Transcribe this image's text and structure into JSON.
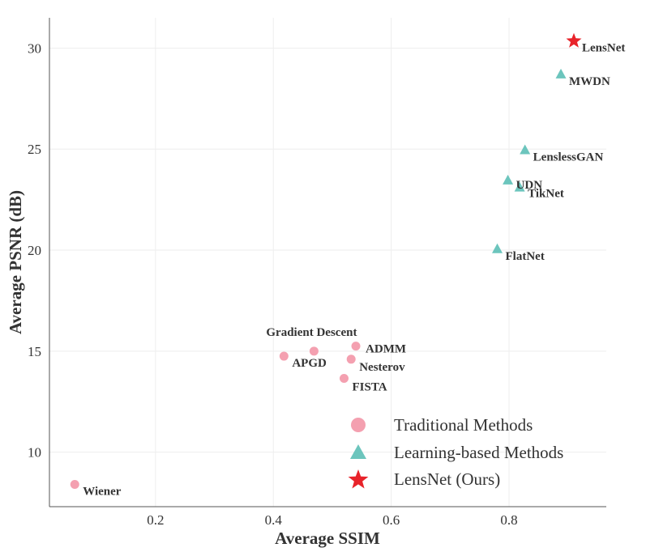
{
  "chart_data": {
    "type": "scatter",
    "xlabel": "Average SSIM",
    "ylabel": "Average PSNR (dB)",
    "xlim": [
      0.02,
      0.965
    ],
    "ylim": [
      7.3,
      31.5
    ],
    "xticks": [
      "0.2",
      "0.4",
      "0.6",
      "0.8"
    ],
    "yticks": [
      "10",
      "15",
      "20",
      "25",
      "30"
    ],
    "grid": true,
    "legend_position": "bottom-right",
    "series": [
      {
        "name": "Traditional Methods",
        "marker": "circle",
        "color": "#f4a0b0",
        "points": [
          {
            "label": "Wiener",
            "x": 0.063,
            "y": 8.4
          },
          {
            "label": "APGD",
            "x": 0.418,
            "y": 14.75
          },
          {
            "label": "Gradient Descent",
            "x": 0.469,
            "y": 15.0
          },
          {
            "label": "ADMM",
            "x": 0.54,
            "y": 15.25
          },
          {
            "label": "Nesterov",
            "x": 0.532,
            "y": 14.6
          },
          {
            "label": "FISTA",
            "x": 0.52,
            "y": 13.65
          }
        ]
      },
      {
        "name": "Learning-based Methods",
        "marker": "triangle",
        "color": "#6cc5bd",
        "points": [
          {
            "label": "MWDN",
            "x": 0.888,
            "y": 28.7
          },
          {
            "label": "LenslessGAN",
            "x": 0.827,
            "y": 24.95
          },
          {
            "label": "UDN",
            "x": 0.798,
            "y": 23.45
          },
          {
            "label": "TikNet",
            "x": 0.818,
            "y": 23.1
          },
          {
            "label": "FlatNet",
            "x": 0.78,
            "y": 20.05
          }
        ]
      },
      {
        "name": "LensNet (Ours)",
        "marker": "star",
        "color": "#e8232a",
        "points": [
          {
            "label": "LensNet",
            "x": 0.91,
            "y": 30.35
          }
        ]
      }
    ]
  }
}
